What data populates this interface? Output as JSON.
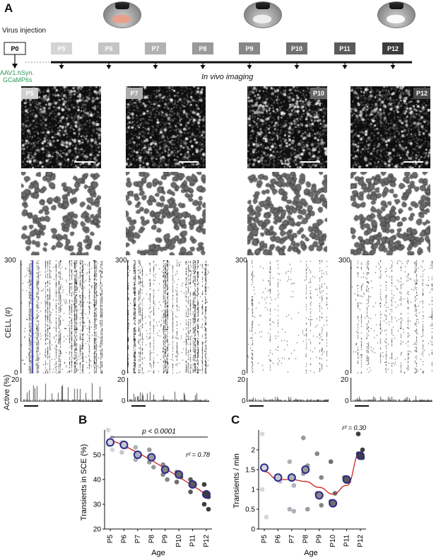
{
  "panels": {
    "a": "A",
    "b": "B",
    "c": "C"
  },
  "timeline": {
    "virus_label": "Virus injection",
    "injection_day": "P0",
    "construct_line1": "AAV1.hSyn.",
    "construct_line2": "GCaMP6s",
    "imaging_label": "In vivo imaging",
    "days": [
      "P5",
      "P6",
      "P7",
      "P8",
      "P9",
      "P10",
      "P11",
      "P12"
    ],
    "day_colors": [
      "#d4d4d4",
      "#c4c4c4",
      "#b2b2b2",
      "#9a9a9a",
      "#878787",
      "#707070",
      "#5a5a5a",
      "#3c3c3c"
    ]
  },
  "columns": [
    {
      "age": "P5",
      "color": "#cfcfcf"
    },
    {
      "age": "P7",
      "color": "#adadad"
    },
    {
      "age": "P10",
      "color": "#666666"
    },
    {
      "age": "P12",
      "color": "#4a4a4a"
    }
  ],
  "raster": {
    "ylabel": "CELL (#)",
    "ymax": "300",
    "ymin": "0",
    "highlight_color": "#3a3aa0"
  },
  "activity": {
    "ylabel": "Active (%)",
    "ymax": "20",
    "ymin": "0"
  },
  "colors": {
    "fit": "#cc2222",
    "marker_edge": "#2b2b8c"
  },
  "chart_data": [
    {
      "type": "scatter",
      "title": "",
      "xlabel": "Age",
      "ylabel": "Transients in SCE (%)",
      "categories": [
        "P5",
        "P6",
        "P7",
        "P8",
        "P9",
        "P10",
        "P11",
        "P12"
      ],
      "ylim": [
        20,
        60
      ],
      "yticks": [
        20,
        30,
        40,
        50
      ],
      "means": [
        55,
        54,
        50,
        49,
        44,
        42,
        38,
        34
      ],
      "individual": [
        [
          60,
          57,
          54,
          52
        ],
        [
          55,
          53,
          51
        ],
        [
          53,
          50,
          48
        ],
        [
          52,
          49,
          47,
          45
        ],
        [
          46,
          44,
          42,
          40
        ],
        [
          43,
          41,
          39
        ],
        [
          40,
          38,
          35
        ],
        [
          38,
          33,
          30,
          28
        ]
      ],
      "annotation_p": "p < 0.0001",
      "annotation_r2": "r² = 0.78",
      "fit": "smooth trend line"
    },
    {
      "type": "scatter",
      "title": "",
      "xlabel": "Age",
      "ylabel": "Transients / min",
      "categories": [
        "P5",
        "P6",
        "P7",
        "P8",
        "P9",
        "P10",
        "P11",
        "P12"
      ],
      "ylim": [
        0,
        2.5
      ],
      "yticks": [
        0,
        0.5,
        1,
        1.5,
        2
      ],
      "means": [
        1.55,
        1.3,
        1.3,
        1.5,
        0.85,
        0.65,
        1.25,
        1.85
      ],
      "individual": [
        [
          2.4,
          1.5,
          1.0,
          0.3
        ],
        [
          1.3,
          1.2
        ],
        [
          1.7,
          1.1,
          0.5,
          0.45
        ],
        [
          2.3,
          1.6,
          1.4,
          0.5
        ],
        [
          1.9,
          1.3,
          0.9,
          0.6
        ],
        [
          1.7,
          0.9,
          0.7
        ],
        [
          1.3,
          1.2
        ],
        [
          2.4,
          2.0,
          1.9,
          1.8
        ]
      ],
      "fit_curve": [
        1.45,
        1.25,
        1.25,
        1.2,
        1.05,
        0.88,
        1.1,
        1.95
      ],
      "annotation_r2": "r² = 0.30"
    }
  ]
}
